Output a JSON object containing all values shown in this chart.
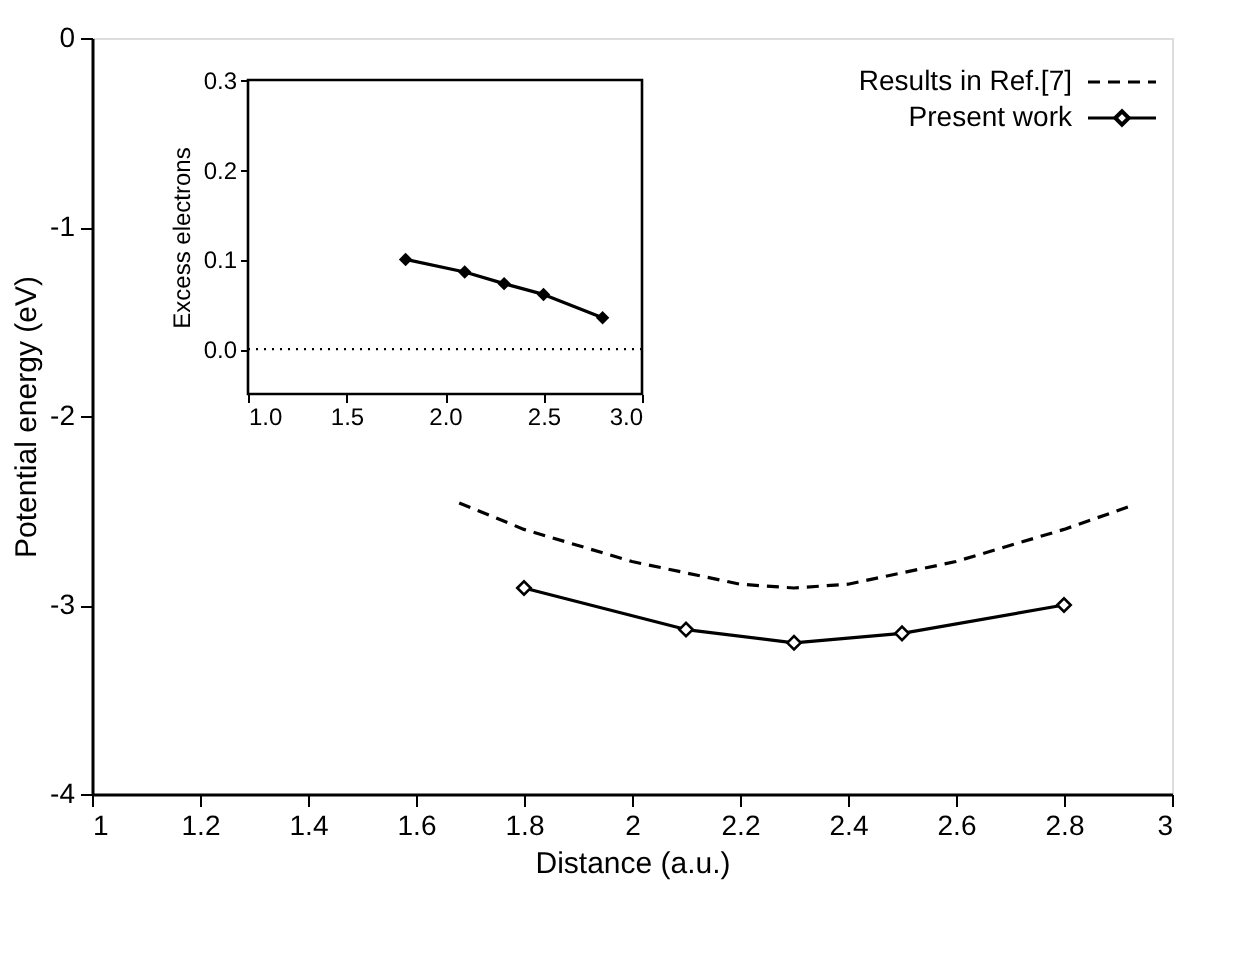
{
  "chart_data": [
    {
      "type": "line",
      "xlabel": "Distance (a.u.)",
      "ylabel": "Potential energy (eV)",
      "xlim": [
        1,
        3
      ],
      "ylim": [
        -4,
        0
      ],
      "xticks": [
        1,
        1.2,
        1.4,
        1.6,
        1.8,
        2,
        2.2,
        2.4,
        2.6,
        2.8,
        3
      ],
      "yticks": [
        0,
        -1,
        -2,
        -3,
        -4
      ],
      "legend": "top right",
      "grid": false,
      "series": [
        {
          "name": "Results in Ref.[7]",
          "color": "#000000",
          "line_style": "dashed",
          "marker": "none",
          "x": [
            1.68,
            1.8,
            2.0,
            2.2,
            2.3,
            2.4,
            2.6,
            2.8,
            2.92
          ],
          "values": [
            -2.46,
            -2.6,
            -2.77,
            -2.89,
            -2.91,
            -2.89,
            -2.77,
            -2.6,
            -2.48
          ]
        },
        {
          "name": "Present work",
          "color": "#000000",
          "line_style": "solid",
          "marker": "diamond",
          "x": [
            1.8,
            2.1,
            2.3,
            2.5,
            2.8
          ],
          "values": [
            -2.91,
            -3.13,
            -3.2,
            -3.15,
            -3.0
          ]
        }
      ]
    },
    {
      "type": "line",
      "ylabel": "Excess electrons",
      "xlim": [
        1,
        3
      ],
      "ylim": [
        -0.05,
        0.3
      ],
      "xticks": [
        {
          "value": 1,
          "label": "1.0"
        },
        1.5,
        {
          "value": 2,
          "label": "2.0"
        },
        2.5,
        {
          "value": 3,
          "label": "3.0"
        }
      ],
      "yticks": [
        {
          "value": 0,
          "label": "0.0"
        },
        0.1,
        0.2,
        0.3
      ],
      "grid": false,
      "ref_lines": [
        {
          "axis": "y",
          "value": 0,
          "line_style": "dotted"
        }
      ],
      "series": [
        {
          "color": "#000000",
          "line_style": "solid",
          "marker": "diamond",
          "x": [
            1.8,
            2.1,
            2.3,
            2.5,
            2.8
          ],
          "values": [
            0.1,
            0.086,
            0.073,
            0.061,
            0.035
          ]
        }
      ]
    }
  ]
}
